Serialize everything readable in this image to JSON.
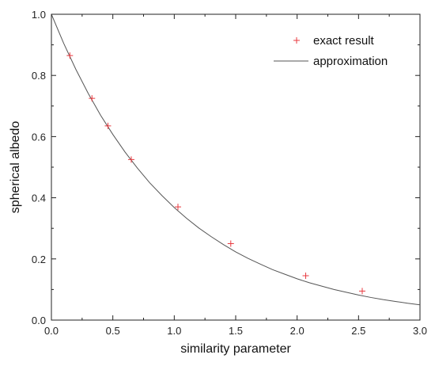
{
  "chart_data": {
    "type": "scatter",
    "title": "",
    "xlabel": "similarity parameter",
    "ylabel": "spherical albedo",
    "xlim": [
      0.0,
      3.0
    ],
    "ylim": [
      0.0,
      1.0
    ],
    "x_ticks": [
      "0.0",
      "0.5",
      "1.0",
      "1.5",
      "2.0",
      "2.5",
      "3.0"
    ],
    "y_ticks": [
      "0.0",
      "0.2",
      "0.4",
      "0.6",
      "0.8",
      "1.0"
    ],
    "grid": false,
    "legend_position": "top-right",
    "series": [
      {
        "name": "exact result",
        "kind": "points",
        "marker": "plus",
        "color": "#e8393f",
        "x": [
          0.15,
          0.33,
          0.46,
          0.65,
          1.03,
          1.46,
          2.07,
          2.53
        ],
        "y": [
          0.865,
          0.725,
          0.635,
          0.525,
          0.37,
          0.25,
          0.145,
          0.095
        ]
      },
      {
        "name": "approximation",
        "kind": "line",
        "color": "#555555",
        "x": [
          0.0,
          0.1,
          0.2,
          0.3,
          0.4,
          0.5,
          0.6,
          0.7,
          0.8,
          0.9,
          1.0,
          1.1,
          1.2,
          1.3,
          1.4,
          1.5,
          1.6,
          1.7,
          1.8,
          1.9,
          2.0,
          2.1,
          2.2,
          2.3,
          2.4,
          2.5,
          2.6,
          2.7,
          2.8,
          2.9,
          3.0
        ],
        "y": [
          1.0,
          0.905,
          0.819,
          0.741,
          0.67,
          0.607,
          0.549,
          0.497,
          0.449,
          0.407,
          0.368,
          0.333,
          0.301,
          0.273,
          0.247,
          0.223,
          0.202,
          0.183,
          0.165,
          0.15,
          0.135,
          0.122,
          0.111,
          0.1,
          0.091,
          0.082,
          0.074,
          0.067,
          0.061,
          0.055,
          0.05
        ]
      }
    ]
  }
}
